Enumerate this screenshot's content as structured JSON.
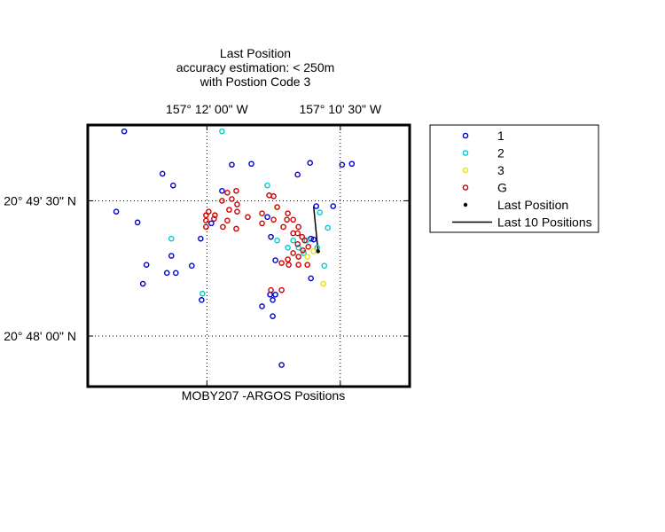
{
  "chart_data": {
    "type": "scatter",
    "title": [
      "Last Position",
      "accuracy estimation: < 250m",
      "with Postion Code 3"
    ],
    "caption": "MOBY207 -ARGOS Positions",
    "x_ticks": [
      {
        "value": 0,
        "label": "157° 12' 00\" W"
      },
      {
        "value": 1.5,
        "label": "157° 10' 30\" W"
      }
    ],
    "y_ticks": [
      {
        "value": 0,
        "label": "20° 49' 30\" N"
      },
      {
        "value": -1.5,
        "label": "20° 48' 00\" N"
      }
    ],
    "xlim": [
      -1.34,
      2.28
    ],
    "ylim": [
      -2.06,
      0.84
    ],
    "grid": true,
    "legend_position": "right",
    "series": [
      {
        "name": "1",
        "color": "#0000cc",
        "points": [
          [
            -0.93,
            0.77
          ],
          [
            -0.5,
            0.3
          ],
          [
            -0.38,
            0.17
          ],
          [
            -1.02,
            -0.12
          ],
          [
            -0.78,
            -0.24
          ],
          [
            -0.68,
            -0.71
          ],
          [
            -0.72,
            -0.92
          ],
          [
            -0.45,
            -0.8
          ],
          [
            -0.35,
            -0.8
          ],
          [
            -0.17,
            -0.72
          ],
          [
            0.17,
            0.11
          ],
          [
            0.5,
            0.41
          ],
          [
            1.02,
            0.29
          ],
          [
            1.52,
            0.4
          ],
          [
            1.63,
            0.41
          ],
          [
            1.42,
            -0.06
          ],
          [
            0.68,
            -0.18
          ],
          [
            0.72,
            -0.4
          ],
          [
            0.77,
            -0.66
          ],
          [
            1.17,
            -0.86
          ],
          [
            0.71,
            -1.04
          ],
          [
            0.77,
            -1.04
          ],
          [
            0.74,
            -1.1
          ],
          [
            0.62,
            -1.17
          ],
          [
            0.74,
            -1.28
          ],
          [
            0.84,
            -1.82
          ],
          [
            -0.07,
            -0.42
          ],
          [
            0.05,
            -0.25
          ],
          [
            1.16,
            0.42
          ],
          [
            -0.4,
            -0.61
          ],
          [
            1.2,
            -0.43
          ],
          [
            -0.06,
            -1.1
          ],
          [
            0.28,
            0.4
          ],
          [
            1.17,
            -0.42
          ],
          [
            1.23,
            -0.06
          ]
        ]
      },
      {
        "name": "2",
        "color": "#00cccc",
        "points": [
          [
            0.17,
            0.77
          ],
          [
            0.68,
            0.17
          ],
          [
            1.27,
            -0.13
          ],
          [
            1.36,
            -0.3
          ],
          [
            1.32,
            -0.72
          ],
          [
            0.79,
            -0.44
          ],
          [
            0.97,
            -0.44
          ],
          [
            0.91,
            -0.52
          ],
          [
            1.03,
            -0.52
          ],
          [
            1.12,
            -0.44
          ],
          [
            1.09,
            -0.58
          ],
          [
            -0.4,
            -0.42
          ],
          [
            -0.05,
            -1.03
          ],
          [
            1.24,
            -0.52
          ]
        ]
      },
      {
        "name": "3",
        "color": "#e6e600",
        "points": [
          [
            0.79,
            -0.07
          ],
          [
            1.2,
            -0.56
          ],
          [
            1.31,
            -0.92
          ],
          [
            1.13,
            -0.62
          ]
        ]
      },
      {
        "name": "G",
        "color": "#cc0000",
        "points": [
          [
            0.17,
            0.0
          ],
          [
            0.23,
            0.09
          ],
          [
            0.33,
            0.11
          ],
          [
            0.28,
            0.02
          ],
          [
            0.34,
            -0.04
          ],
          [
            0.25,
            -0.1
          ],
          [
            0.34,
            -0.12
          ],
          [
            0.46,
            -0.18
          ],
          [
            0.23,
            -0.22
          ],
          [
            0.09,
            -0.16
          ],
          [
            0.02,
            -0.12
          ],
          [
            -0.01,
            -0.16
          ],
          [
            0.08,
            -0.2
          ],
          [
            -0.01,
            -0.22
          ],
          [
            -0.01,
            -0.29
          ],
          [
            0.18,
            -0.29
          ],
          [
            0.33,
            -0.31
          ],
          [
            0.7,
            0.06
          ],
          [
            0.75,
            0.05
          ],
          [
            0.79,
            -0.07
          ],
          [
            0.91,
            -0.14
          ],
          [
            0.97,
            -0.21
          ],
          [
            1.03,
            -0.29
          ],
          [
            1.02,
            -0.36
          ],
          [
            1.07,
            -0.4
          ],
          [
            1.02,
            -0.48
          ],
          [
            1.08,
            -0.55
          ],
          [
            1.14,
            -0.51
          ],
          [
            1.03,
            -0.62
          ],
          [
            0.97,
            -0.58
          ],
          [
            0.91,
            -0.65
          ],
          [
            0.84,
            -0.69
          ],
          [
            0.92,
            -0.71
          ],
          [
            1.03,
            -0.71
          ],
          [
            1.13,
            -0.71
          ],
          [
            0.97,
            -0.36
          ],
          [
            0.86,
            -0.29
          ],
          [
            0.75,
            -0.21
          ],
          [
            0.9,
            -0.21
          ],
          [
            0.62,
            -0.14
          ],
          [
            0.62,
            -0.25
          ],
          [
            0.72,
            -0.99
          ],
          [
            0.84,
            -0.99
          ],
          [
            1.1,
            -0.44
          ]
        ]
      }
    ],
    "track": {
      "name": "Last 10 Positions",
      "color": "#000000",
      "points": [
        [
          1.2,
          -0.06
        ],
        [
          1.25,
          -0.56
        ]
      ]
    },
    "last_position": {
      "name": "Last Position",
      "color": "#000000",
      "point": [
        1.25,
        -0.56
      ]
    }
  }
}
